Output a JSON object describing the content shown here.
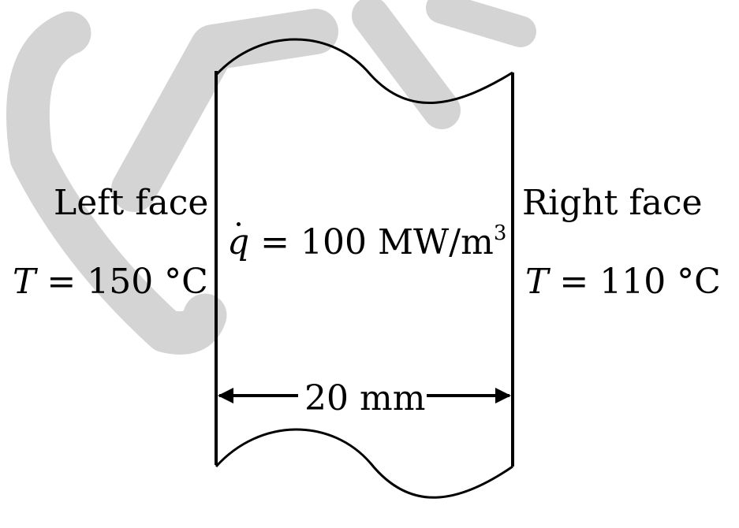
{
  "watermark": {
    "text": "GATE",
    "color": "#d4d4d4"
  },
  "left_face": {
    "title": "Left face",
    "temp_symbol": "T",
    "temp_value": " = 150 °C"
  },
  "right_face": {
    "title": "Right face",
    "temp_symbol": "T",
    "temp_value": " = 110 °C"
  },
  "heat_generation": {
    "symbol": "q",
    "expression": " = 100 MW/m",
    "exponent": "3"
  },
  "thickness": {
    "label": "20 mm"
  },
  "colors": {
    "line": "#000000",
    "background": "#ffffff"
  }
}
